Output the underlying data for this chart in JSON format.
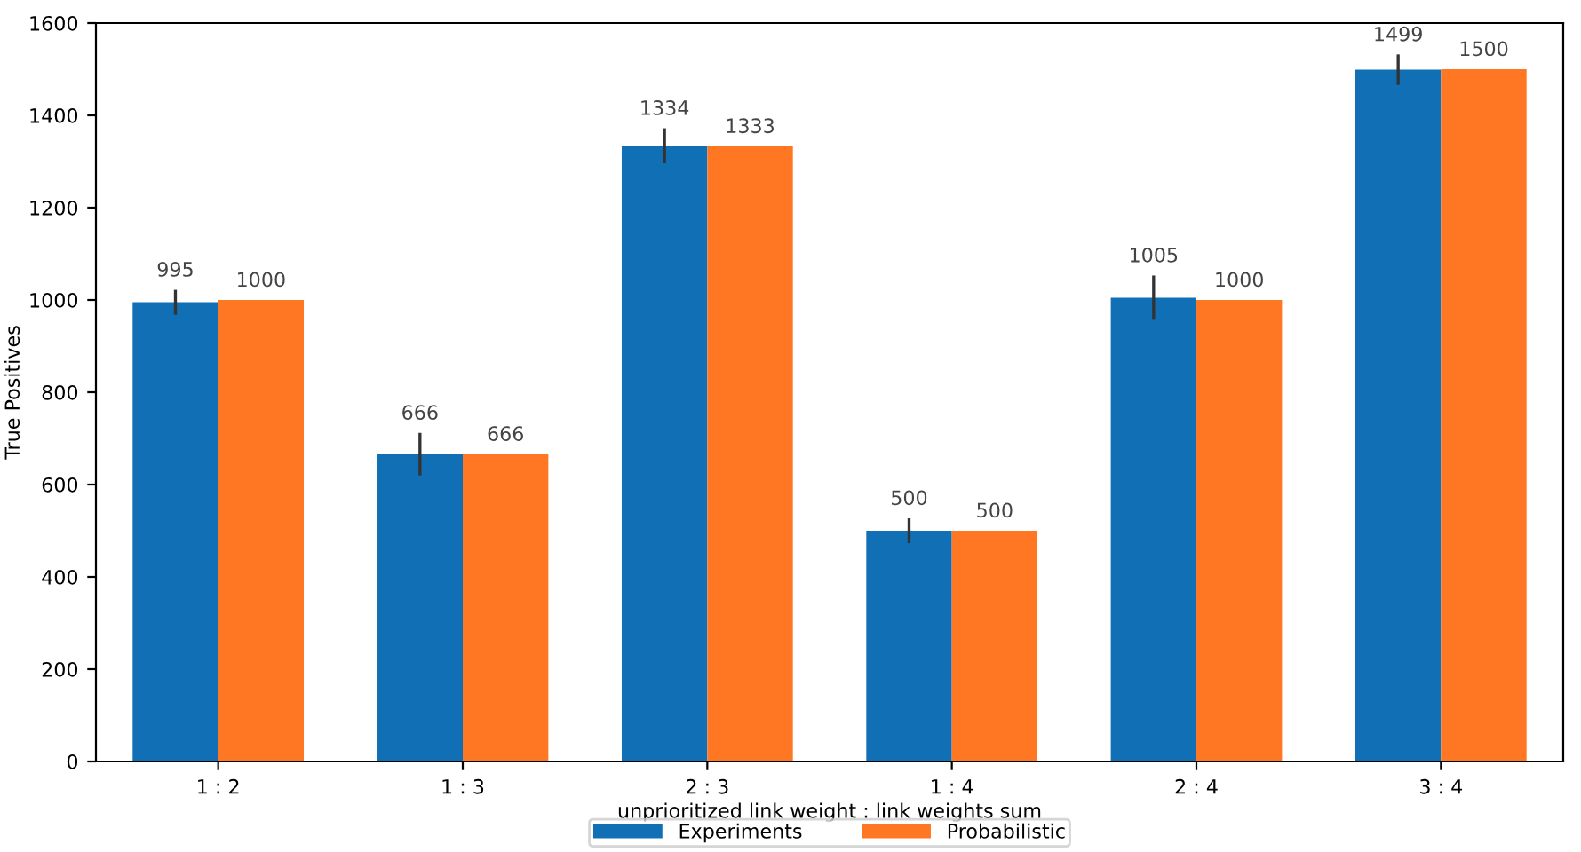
{
  "chart_data": {
    "type": "bar",
    "xlabel": "unprioritized link weight : link weights sum",
    "ylabel": "True Positives",
    "categories": [
      "1 : 2",
      "1 : 3",
      "2 : 3",
      "1 : 4",
      "2 : 4",
      "3 : 4"
    ],
    "series": [
      {
        "name": "Experiments",
        "color": "#1170b5",
        "values": [
          995,
          666,
          1334,
          500,
          1005,
          1499
        ],
        "errors": [
          27,
          46,
          38,
          27,
          48,
          33
        ]
      },
      {
        "name": "Probabilistic",
        "color": "#ff7722",
        "values": [
          1000,
          666,
          1333,
          500,
          1000,
          1500
        ]
      }
    ],
    "ylim": [
      0,
      1600
    ],
    "yticks": [
      0,
      200,
      400,
      600,
      800,
      1000,
      1200,
      1400,
      1600
    ],
    "data_labels": true,
    "legend": "bottom",
    "grid": false
  }
}
